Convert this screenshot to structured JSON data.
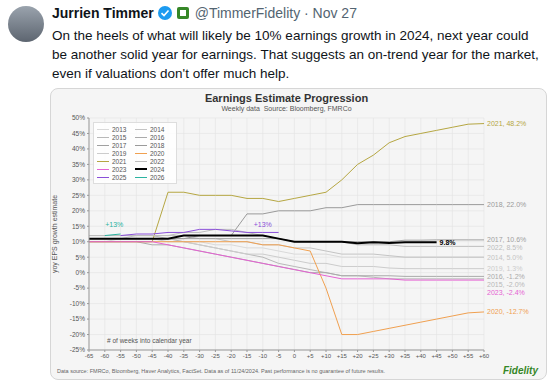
{
  "tweet": {
    "name": "Jurrien Timmer",
    "meta": "@TimmerFidelity · Nov 27",
    "text": "On the heels of what will likely be 10% earnings growth in 2024, next year could be another solid year for earnings.  That suggests an on-trend year for the market, even if valuations don't offer much help.",
    "footer": "Data source: FMRCo, Bloomberg, Haver Analytics, FactSet. Data as of 11/24/2024. Past performance is no guarantee of future results.",
    "logo": "Fidelity"
  },
  "chart_data": {
    "type": "line",
    "title": "Earnings Estimate Progression",
    "subtitle": "Weekly data  Source: Bloomberg, FMRCo",
    "x_label": "# of weeks into calendar year",
    "y_label": "yoy EPS growth estimate",
    "grid": true,
    "legend": "upper left",
    "xlim": [
      -65,
      60
    ],
    "ylim": [
      -25,
      50
    ],
    "xticks": [
      -65,
      -60,
      -55,
      -50,
      -45,
      -40,
      -35,
      -30,
      -25,
      -20,
      -15,
      -10,
      -5,
      0,
      {
        "value": 5,
        "label": "+5"
      },
      {
        "value": 10,
        "label": "+10"
      },
      {
        "value": 15,
        "label": "+15"
      },
      {
        "value": 20,
        "label": "+20"
      },
      {
        "value": 25,
        "label": "+25"
      },
      {
        "value": 30,
        "label": "+30"
      },
      {
        "value": 35,
        "label": "+35"
      },
      {
        "value": 40,
        "label": "+40"
      },
      {
        "value": 45,
        "label": "+45"
      },
      {
        "value": 50,
        "label": "+50"
      },
      {
        "value": 55,
        "label": "+55"
      },
      {
        "value": 60,
        "label": "+60"
      }
    ],
    "yticks": [
      {
        "value": -25,
        "label": "-25%"
      },
      {
        "value": -20,
        "label": "-20%"
      },
      {
        "value": -15,
        "label": "-15%"
      },
      {
        "value": -10,
        "label": "-10%"
      },
      {
        "value": -5,
        "label": "-5%"
      },
      {
        "value": 0,
        "label": "0%"
      },
      {
        "value": 5,
        "label": "5%"
      },
      {
        "value": 10,
        "label": "10%"
      },
      {
        "value": 15,
        "label": "15%"
      },
      {
        "value": 20,
        "label": "20%"
      },
      {
        "value": 25,
        "label": "25%"
      },
      {
        "value": 30,
        "label": "30%"
      },
      {
        "value": 35,
        "label": "35%"
      },
      {
        "value": 40,
        "label": "40%"
      },
      {
        "value": 45,
        "label": "45%"
      },
      {
        "value": 50,
        "label": "50%"
      }
    ],
    "x": [
      -65,
      -60,
      -55,
      -50,
      -45,
      -40,
      -35,
      -30,
      -25,
      -20,
      -15,
      -10,
      -5,
      0,
      5,
      10,
      15,
      20,
      25,
      30,
      35,
      40,
      45,
      50,
      55,
      60
    ],
    "series": [
      {
        "name": "2013",
        "color": "#d9d9d9",
        "values": [
          10,
          10,
          11,
          11,
          11,
          11,
          10,
          10,
          9,
          9,
          8,
          8,
          7,
          6,
          6,
          6,
          5,
          5,
          5,
          5,
          5,
          5,
          5,
          5,
          5,
          5
        ]
      },
      {
        "name": "2014",
        "color": "#c4c4c4",
        "end_label": "2014, 5.0%",
        "values": [
          11,
          11,
          11,
          12,
          12,
          12,
          12,
          11,
          11,
          10,
          10,
          9,
          9,
          8,
          8,
          7,
          6,
          6,
          6,
          5.5,
          5,
          5,
          5,
          5,
          5,
          5
        ]
      },
      {
        "name": "2015",
        "color": "#b8b8b8",
        "end_label": "2015, -2.0%",
        "values": [
          12,
          12,
          12,
          12,
          12,
          11,
          10,
          9,
          8,
          7,
          6,
          5,
          3,
          2,
          1,
          0,
          -1,
          -1,
          -1.5,
          -2,
          -2,
          -2,
          -2,
          -2,
          -2,
          -2
        ]
      },
      {
        "name": "2016",
        "color": "#aaaaaa",
        "end_label": "2016, -1.2%",
        "values": [
          10,
          10,
          10,
          10,
          9,
          9,
          8,
          7,
          6,
          5,
          4,
          3,
          2,
          1,
          0,
          0,
          -1,
          -1,
          -1,
          -1,
          -1.2,
          -1.2,
          -1.2,
          -1.2,
          -1.2,
          -1.2
        ]
      },
      {
        "name": "2017",
        "color": "#a0a0a0",
        "end_label": "2017, 10.6%",
        "values": [
          11,
          11,
          11,
          11,
          11,
          11,
          11,
          11,
          11,
          11,
          11,
          11,
          11,
          10,
          10,
          10,
          10,
          10,
          10,
          10,
          10.5,
          10.5,
          10.6,
          10.6,
          10.6,
          10.6
        ]
      },
      {
        "name": "2018",
        "color": "#9a9a9a",
        "end_label": "2018, 22.0%",
        "values": [
          11,
          11,
          11,
          11,
          11,
          11,
          11,
          12,
          12,
          12,
          19,
          19,
          20,
          20,
          20,
          21,
          21,
          22,
          22,
          22,
          22,
          22,
          22,
          22,
          22,
          22
        ]
      },
      {
        "name": "2019",
        "color": "#cccccc",
        "end_label": "2019, 1.3%",
        "values": [
          11,
          11,
          11,
          11,
          11,
          10,
          10,
          9,
          8,
          7,
          6,
          6,
          5,
          4,
          3,
          3,
          2,
          2,
          2,
          1.5,
          1.3,
          1.3,
          1.3,
          1.3,
          1.3,
          1.3
        ]
      },
      {
        "name": "2020",
        "color": "#f0a050",
        "end_label": "2020, -12.7%",
        "values": [
          10,
          10,
          10,
          10,
          10,
          10,
          10,
          10,
          10,
          10,
          10,
          9,
          9,
          8,
          7,
          -5,
          -20,
          -20,
          -19,
          -18,
          -17,
          -16,
          -15,
          -14,
          -13,
          -12.7
        ]
      },
      {
        "name": "2021",
        "color": "#b5a642",
        "end_label": "2021, 48.2%",
        "values": [
          10,
          10,
          10,
          10,
          10,
          26,
          26,
          25,
          25,
          25,
          24,
          24,
          23,
          24,
          25,
          26,
          30,
          35,
          38,
          42,
          44,
          45,
          46,
          47,
          48,
          48.2
        ]
      },
      {
        "name": "2022",
        "color": "#bdbdbd",
        "end_label": "2022, 8.5%",
        "values": [
          12,
          12,
          12,
          12,
          12,
          12,
          13,
          13,
          14,
          14,
          13,
          12,
          11,
          10,
          10,
          10,
          10,
          9,
          9,
          9,
          8.5,
          8.5,
          8.5,
          8.5,
          8.5,
          8.5
        ]
      },
      {
        "name": "2023",
        "color": "#e563d3",
        "end_label": "2023, -2.4%",
        "values": [
          10,
          10,
          10,
          10,
          10,
          9,
          8,
          7,
          6,
          5,
          4,
          3,
          2,
          1,
          0,
          -1,
          -2,
          -2,
          -2,
          -2,
          -2.4,
          -2.4,
          -2.4,
          -2.4,
          -2.4,
          -2.4
        ]
      },
      {
        "name": "2024",
        "color": "#000000",
        "line_style": "thick",
        "end_label": "9.8%",
        "values": [
          11,
          11,
          11,
          11,
          11,
          11,
          12,
          12,
          12,
          12,
          12,
          12,
          11,
          10,
          10,
          10,
          10,
          9.5,
          9.8,
          9.6,
          9.8,
          9.8,
          9.8,
          null,
          null,
          null
        ]
      },
      {
        "name": "2025",
        "color": "#8a4fd8",
        "values": [
          null,
          null,
          12,
          12.5,
          12.5,
          13,
          13,
          14,
          14,
          13.5,
          13,
          13,
          13,
          null,
          null,
          null,
          null,
          null,
          null,
          null,
          null,
          null,
          null,
          null,
          null,
          null
        ]
      },
      {
        "name": "2026",
        "color": "#2bb3a0",
        "values": [
          null,
          12,
          12.5,
          null,
          null,
          null,
          null,
          null,
          null,
          null,
          null,
          null,
          null,
          null,
          null,
          null,
          null,
          null,
          null,
          null,
          null,
          null,
          null,
          null,
          null,
          null
        ]
      }
    ],
    "annotations": [
      {
        "text": "+13%",
        "x": -57,
        "y": 13,
        "color": "#2bb3a0"
      },
      {
        "text": "+13%",
        "x": -10,
        "y": 13,
        "color": "#8a4fd8"
      }
    ]
  }
}
